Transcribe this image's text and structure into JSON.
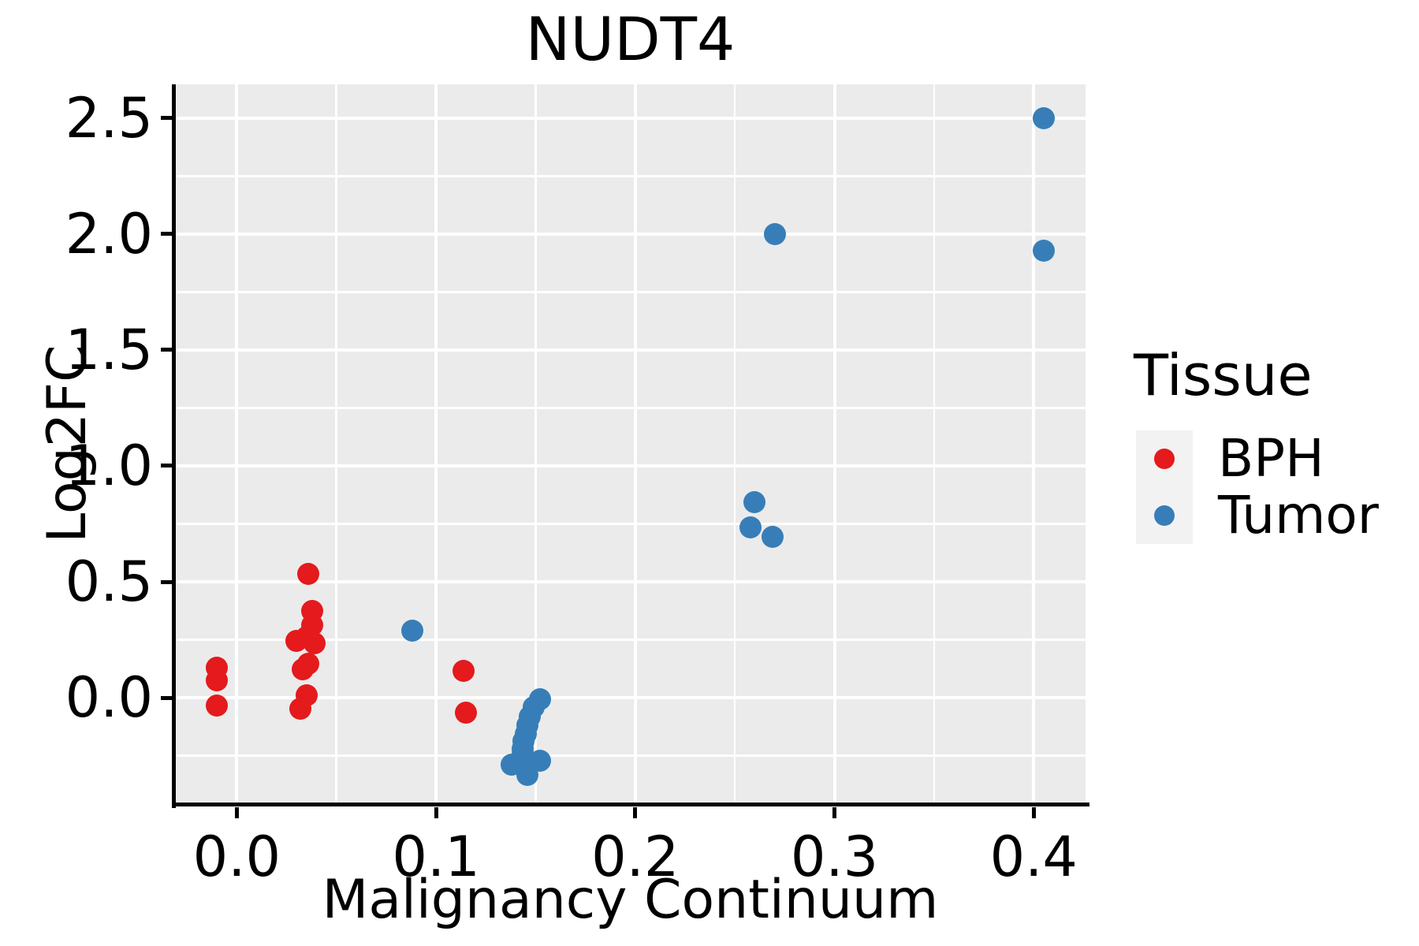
{
  "figure": {
    "background": "#ffffff"
  },
  "chart_data": {
    "type": "scatter",
    "title": "NUDT4",
    "xlabel": "Malignancy Continuum",
    "ylabel": "Log2FC",
    "xlim": [
      -0.031,
      0.426
    ],
    "ylim": [
      -0.459,
      2.646
    ],
    "xticks": [
      0.0,
      0.1,
      0.2,
      0.3,
      0.4
    ],
    "yticks": [
      0.0,
      0.5,
      1.0,
      1.5,
      2.0,
      2.5
    ],
    "xticks_minor": [
      0.05,
      0.15,
      0.25,
      0.35
    ],
    "yticks_minor": [
      -0.25,
      0.25,
      0.75,
      1.25,
      1.75,
      2.25
    ],
    "grid": {
      "major": true,
      "minor": true,
      "color": "#ffffff",
      "position": "under"
    },
    "panel_bg": "#ebebeb",
    "axis_color": "#000000",
    "text_color": "#000000",
    "marker_size_px": 28,
    "legend": {
      "title": "Tissue",
      "position": "right",
      "key_bg": "#f2f2f2",
      "entries": [
        {
          "label": "BPH",
          "color": "#e41a1c"
        },
        {
          "label": "Tumor",
          "color": "#377eb8"
        }
      ]
    },
    "series": [
      {
        "name": "BPH",
        "color": "#e41a1c",
        "points": [
          [
            -0.01,
            0.13
          ],
          [
            -0.01,
            0.075
          ],
          [
            -0.01,
            -0.034
          ],
          [
            0.036,
            0.534
          ],
          [
            0.038,
            0.374
          ],
          [
            0.038,
            0.312
          ],
          [
            0.035,
            0.263
          ],
          [
            0.03,
            0.245
          ],
          [
            0.039,
            0.236
          ],
          [
            0.036,
            0.146
          ],
          [
            0.033,
            0.124
          ],
          [
            0.035,
            0.01
          ],
          [
            0.032,
            -0.046
          ],
          [
            0.114,
            0.116
          ],
          [
            0.115,
            -0.063
          ]
        ]
      },
      {
        "name": "Tumor",
        "color": "#377eb8",
        "points": [
          [
            0.088,
            0.29
          ],
          [
            0.152,
            -0.005
          ],
          [
            0.149,
            -0.04
          ],
          [
            0.147,
            -0.08
          ],
          [
            0.146,
            -0.12
          ],
          [
            0.145,
            -0.155
          ],
          [
            0.144,
            -0.187
          ],
          [
            0.1435,
            -0.22
          ],
          [
            0.1433,
            -0.243
          ],
          [
            0.152,
            -0.272
          ],
          [
            0.138,
            -0.288
          ],
          [
            0.1455,
            -0.295
          ],
          [
            0.146,
            -0.333
          ],
          [
            0.26,
            0.843
          ],
          [
            0.258,
            0.735
          ],
          [
            0.269,
            0.694
          ],
          [
            0.27,
            2.0
          ],
          [
            0.405,
            2.5
          ],
          [
            0.405,
            1.93
          ]
        ]
      }
    ]
  }
}
